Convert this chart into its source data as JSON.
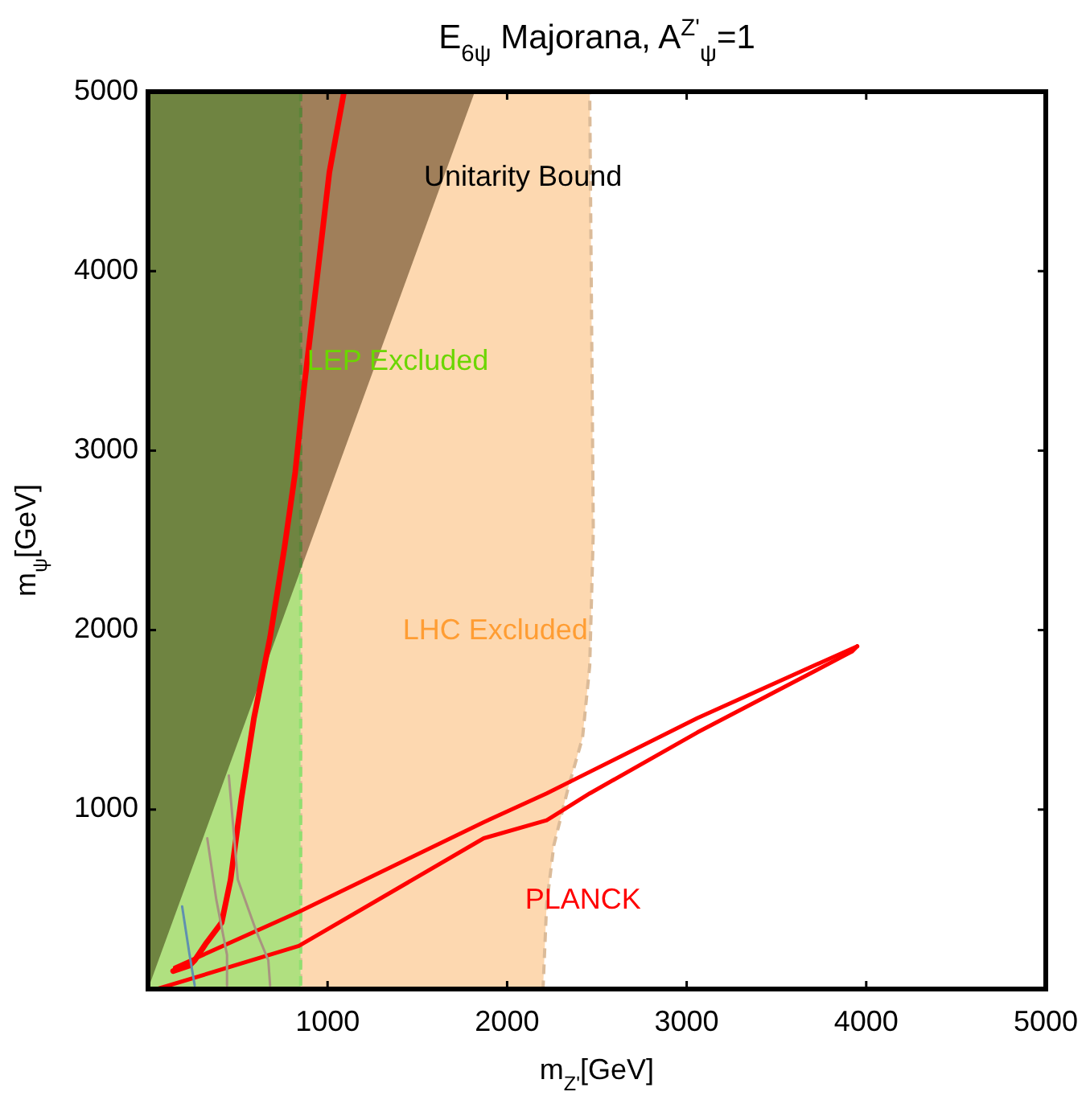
{
  "chart_data": {
    "type": "area",
    "title": "E$_{6ψ}$ Majorana, A$^{Z'}$$_{ψ}$=1",
    "xlabel": "m$_{Z'}$[GeV]",
    "ylabel": "m$_{ψ}$[GeV]",
    "xlim": [
      0,
      5000
    ],
    "ylim": [
      0,
      5000
    ],
    "xticks": [
      1000,
      2000,
      3000,
      4000,
      5000
    ],
    "yticks": [
      1000,
      2000,
      3000,
      4000,
      5000
    ],
    "grid": false,
    "bands": [
      {
        "axis": "x",
        "from": 0,
        "to": 850,
        "label": "LEP Excluded",
        "color": "#b0e080"
      }
    ],
    "ref_lines": [
      {
        "axis": "x",
        "value": 850,
        "color": "#90e070",
        "line_style": "dashed"
      }
    ],
    "series": [
      {
        "name": "LHC Excluded",
        "color": "#fdd8b0",
        "line_style": "dashed",
        "x": [
          850,
          2200,
          2220,
          2260,
          2340,
          2420,
          2460,
          2480,
          2460,
          850
        ],
        "values": [
          0,
          0,
          470,
          800,
          1120,
          1400,
          1800,
          2550,
          5000,
          5000
        ]
      },
      {
        "name": "Unitarity Bound",
        "color": "#a19682",
        "x": [
          0,
          1820,
          0
        ],
        "values": [
          0,
          5000,
          5000
        ]
      },
      {
        "type": "line",
        "name": "PLANCK",
        "color": "#ff0000",
        "x": [
          140,
          230,
          260,
          320,
          410,
          460,
          520,
          590,
          680,
          760,
          820,
          870,
          940,
          1010,
          1090
        ],
        "values": [
          100,
          130,
          160,
          250,
          370,
          610,
          1060,
          1510,
          1960,
          2460,
          2880,
          3360,
          3950,
          4550,
          4990
        ]
      },
      {
        "type": "line",
        "color": "#ff0000",
        "x": [
          150,
          840,
          1870,
          2220,
          2400,
          3060,
          3950
        ],
        "values": [
          120,
          430,
          930,
          1090,
          1180,
          1510,
          1910
        ]
      },
      {
        "type": "line",
        "color": "#ff0000",
        "x": [
          50,
          840,
          1870,
          2220,
          2460,
          3060,
          3920,
          3950
        ],
        "values": [
          0,
          240,
          840,
          940,
          1090,
          1430,
          1880,
          1910
        ]
      },
      {
        "type": "line",
        "color": "#6090b0",
        "x": [
          190,
          230,
          260
        ],
        "values": [
          460,
          200,
          20
        ]
      },
      {
        "type": "line",
        "color": "#a89480",
        "x": [
          330,
          380,
          440,
          440
        ],
        "values": [
          840,
          500,
          190,
          20
        ]
      },
      {
        "type": "line",
        "color": "#a89480",
        "x": [
          450,
          500,
          600,
          670,
          680
        ],
        "values": [
          1190,
          610,
          330,
          160,
          20
        ]
      }
    ]
  }
}
